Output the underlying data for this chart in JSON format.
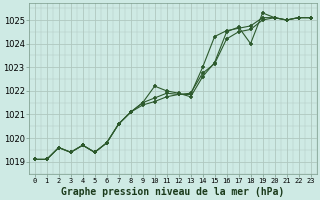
{
  "title": "Graphe pression niveau de la mer (hPa)",
  "bg_color": "#ceeae4",
  "grid_color": "#b0c8c0",
  "line_color": "#2d5a2d",
  "ylim": [
    1018.5,
    1025.7
  ],
  "xlim": [
    -0.5,
    23.5
  ],
  "yticks": [
    1019,
    1020,
    1021,
    1022,
    1023,
    1024,
    1025
  ],
  "xticks": [
    0,
    1,
    2,
    3,
    4,
    5,
    6,
    7,
    8,
    9,
    10,
    11,
    12,
    13,
    14,
    15,
    16,
    17,
    18,
    19,
    20,
    21,
    22,
    23
  ],
  "line1": [
    1019.1,
    1019.1,
    1019.6,
    1019.4,
    1019.7,
    1019.4,
    1019.8,
    1020.6,
    1021.1,
    1021.5,
    1022.2,
    1022.0,
    1021.9,
    1021.75,
    1022.6,
    1023.2,
    1024.5,
    1024.7,
    1024.0,
    1025.3,
    1025.1,
    1025.0,
    1025.1,
    1025.1
  ],
  "line2": [
    1019.1,
    1019.1,
    1019.6,
    1019.4,
    1019.7,
    1019.4,
    1019.8,
    1020.6,
    1021.1,
    1021.5,
    1021.7,
    1021.9,
    1021.85,
    1021.85,
    1023.0,
    1024.3,
    1024.55,
    1024.65,
    1024.75,
    1025.1,
    1025.1,
    1025.0,
    1025.1,
    1025.1
  ],
  "line3": [
    1019.1,
    1019.1,
    1019.6,
    1019.4,
    1019.7,
    1019.4,
    1019.8,
    1020.6,
    1021.1,
    1021.4,
    1021.55,
    1021.75,
    1021.85,
    1021.9,
    1022.75,
    1023.15,
    1024.2,
    1024.5,
    1024.6,
    1025.0,
    1025.1,
    1025.0,
    1025.1,
    1025.1
  ],
  "ylabel_fontsize": 6,
  "xlabel_fontsize": 5,
  "title_fontsize": 7
}
